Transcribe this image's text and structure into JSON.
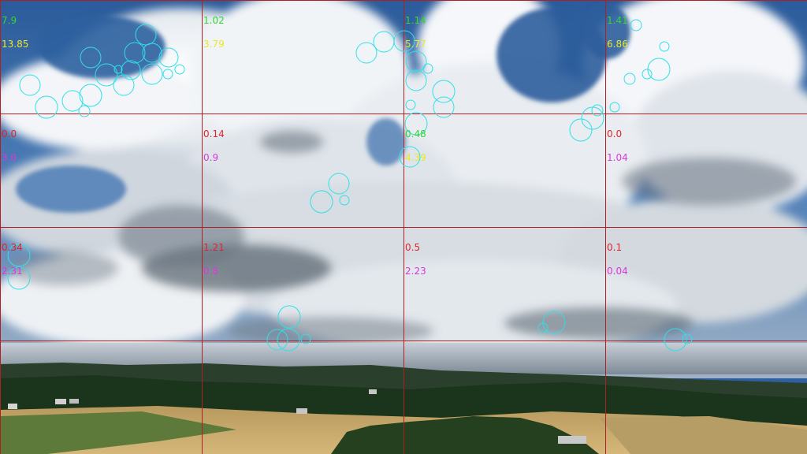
{
  "image": {
    "description_kind": "aerial landscape photo with grid overlay and blob detections",
    "colors": {
      "grid_line": "#b02020",
      "detection_circle": "#2fe0e8",
      "sky_top": "#2e5e9c",
      "cloud": "#eef2f6",
      "cloud_shadow": "#8f99a5",
      "field": "#c9aa6a",
      "forest": "#1e3a1e"
    }
  },
  "grid": {
    "cells": [
      {
        "row": 0,
        "col": 0,
        "top": {
          "text": "7.9",
          "color": "#34d634"
        },
        "bottom": {
          "text": "13.85",
          "color": "#e8e82a"
        }
      },
      {
        "row": 0,
        "col": 1,
        "top": {
          "text": "1.02",
          "color": "#34d634"
        },
        "bottom": {
          "text": "3.79",
          "color": "#e8e82a"
        }
      },
      {
        "row": 0,
        "col": 2,
        "top": {
          "text": "1.14",
          "color": "#34d634"
        },
        "bottom": {
          "text": "5.77",
          "color": "#e8e82a"
        }
      },
      {
        "row": 0,
        "col": 3,
        "top": {
          "text": "1.41",
          "color": "#34d634"
        },
        "bottom": {
          "text": "6.86",
          "color": "#e8e82a"
        }
      },
      {
        "row": 1,
        "col": 0,
        "top": {
          "text": "0.0",
          "color": "#e0242a"
        },
        "bottom": {
          "text": "3.0",
          "color": "#d83ad8"
        }
      },
      {
        "row": 1,
        "col": 1,
        "top": {
          "text": "0.14",
          "color": "#e0242a"
        },
        "bottom": {
          "text": "0.9",
          "color": "#d83ad8"
        }
      },
      {
        "row": 1,
        "col": 2,
        "top": {
          "text": "0.48",
          "color": "#34d634"
        },
        "bottom": {
          "text": "4.39",
          "color": "#e8e82a"
        }
      },
      {
        "row": 1,
        "col": 3,
        "top": {
          "text": "0.0",
          "color": "#e0242a"
        },
        "bottom": {
          "text": "1.04",
          "color": "#d83ad8"
        }
      },
      {
        "row": 2,
        "col": 0,
        "top": {
          "text": "0.34",
          "color": "#e0242a"
        },
        "bottom": {
          "text": "2.31",
          "color": "#d83ad8"
        }
      },
      {
        "row": 2,
        "col": 1,
        "top": {
          "text": "1.21",
          "color": "#e0242a"
        },
        "bottom": {
          "text": "0.8",
          "color": "#d83ad8"
        }
      },
      {
        "row": 2,
        "col": 2,
        "top": {
          "text": "0.5",
          "color": "#e0242a"
        },
        "bottom": {
          "text": "2.23",
          "color": "#d83ad8"
        }
      },
      {
        "row": 2,
        "col": 3,
        "top": {
          "text": "0.1",
          "color": "#e0242a"
        },
        "bottom": {
          "text": "0.04",
          "color": "#d83ad8"
        }
      }
    ]
  }
}
